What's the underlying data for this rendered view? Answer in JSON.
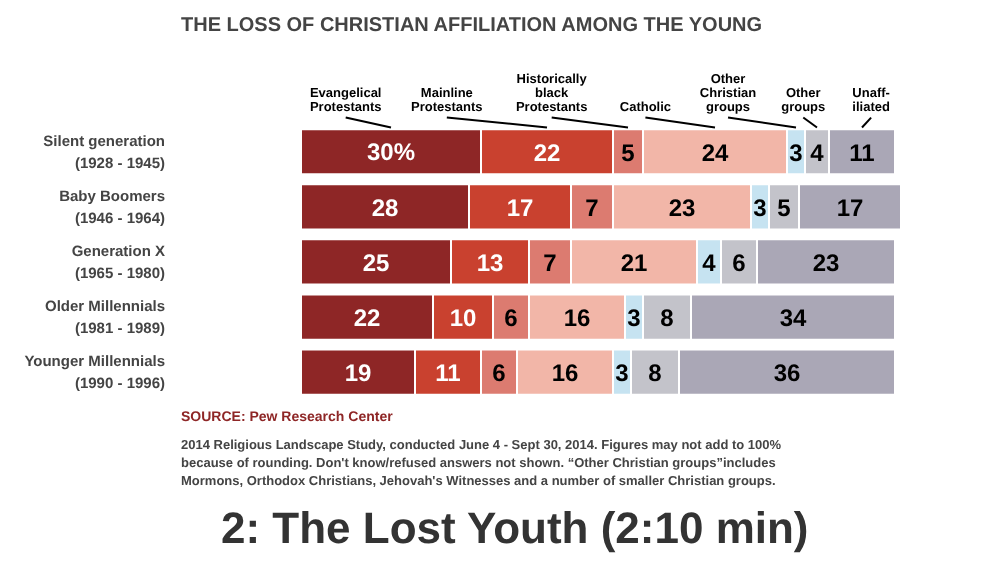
{
  "chart_data": {
    "type": "bar",
    "orientation": "horizontal",
    "stacked": true,
    "title": "THE LOSS OF CHRISTIAN AFFILIATION AMONG THE YOUNG",
    "categories": [
      "Silent generation\n(1928 - 1945)",
      "Baby Boomers\n(1946 - 1964)",
      "Generation X\n(1965 - 1980)",
      "Older Millennials\n(1981 - 1989)",
      "Younger Millennials\n(1990 - 1996)"
    ],
    "series": [
      {
        "name": "Evangelical\nProtestants",
        "color": "#8e2626",
        "values": [
          30,
          28,
          25,
          22,
          19
        ],
        "value_labels": [
          "30%",
          "28",
          "25",
          "22",
          "19"
        ]
      },
      {
        "name": "Mainline\nProtestants",
        "color": "#c9412f",
        "values": [
          22,
          17,
          13,
          10,
          11
        ],
        "value_labels": [
          "22",
          "17",
          "13",
          "10",
          "11"
        ]
      },
      {
        "name": "Historically\nblack\nProtestants",
        "color": "#dc7b70",
        "values": [
          5,
          7,
          7,
          6,
          6
        ],
        "value_labels": [
          "5",
          "7",
          "7",
          "6",
          "6"
        ]
      },
      {
        "name": "Catholic",
        "color": "#f2b6a8",
        "values": [
          24,
          23,
          21,
          16,
          16
        ],
        "value_labels": [
          "24",
          "23",
          "21",
          "16",
          "16"
        ]
      },
      {
        "name": "Other\nChristian\ngroups",
        "color": "#c6e3f1",
        "values": [
          3,
          3,
          4,
          3,
          3
        ],
        "value_labels": [
          "3",
          "3",
          "4",
          "3",
          "3"
        ]
      },
      {
        "name": "Other\ngroups",
        "color": "#c3c3ca",
        "values": [
          4,
          5,
          6,
          8,
          8
        ],
        "value_labels": [
          "4",
          "5",
          "6",
          "8",
          "8"
        ]
      },
      {
        "name": "Unaff-\niliated",
        "color": "#aaa7b6",
        "values": [
          11,
          17,
          23,
          34,
          36
        ],
        "value_labels": [
          "11",
          "17",
          "23",
          "34",
          "36"
        ]
      }
    ],
    "tick_labels": "y",
    "grid": false,
    "annotations": [
      "SOURCE: Pew Research Center",
      "2014 Religious Landscape Study, conducted June 4 - Sept 30, 2014. Figures may not add to 100% because of rounding. Don't know/refused answers not shown. “Other Christian groups”includes Mormons, Orthodox Christians, Jehovah's Witnesses and a number of smaller Christian groups.",
      "2: The Lost Youth (2:10 min)"
    ]
  }
}
